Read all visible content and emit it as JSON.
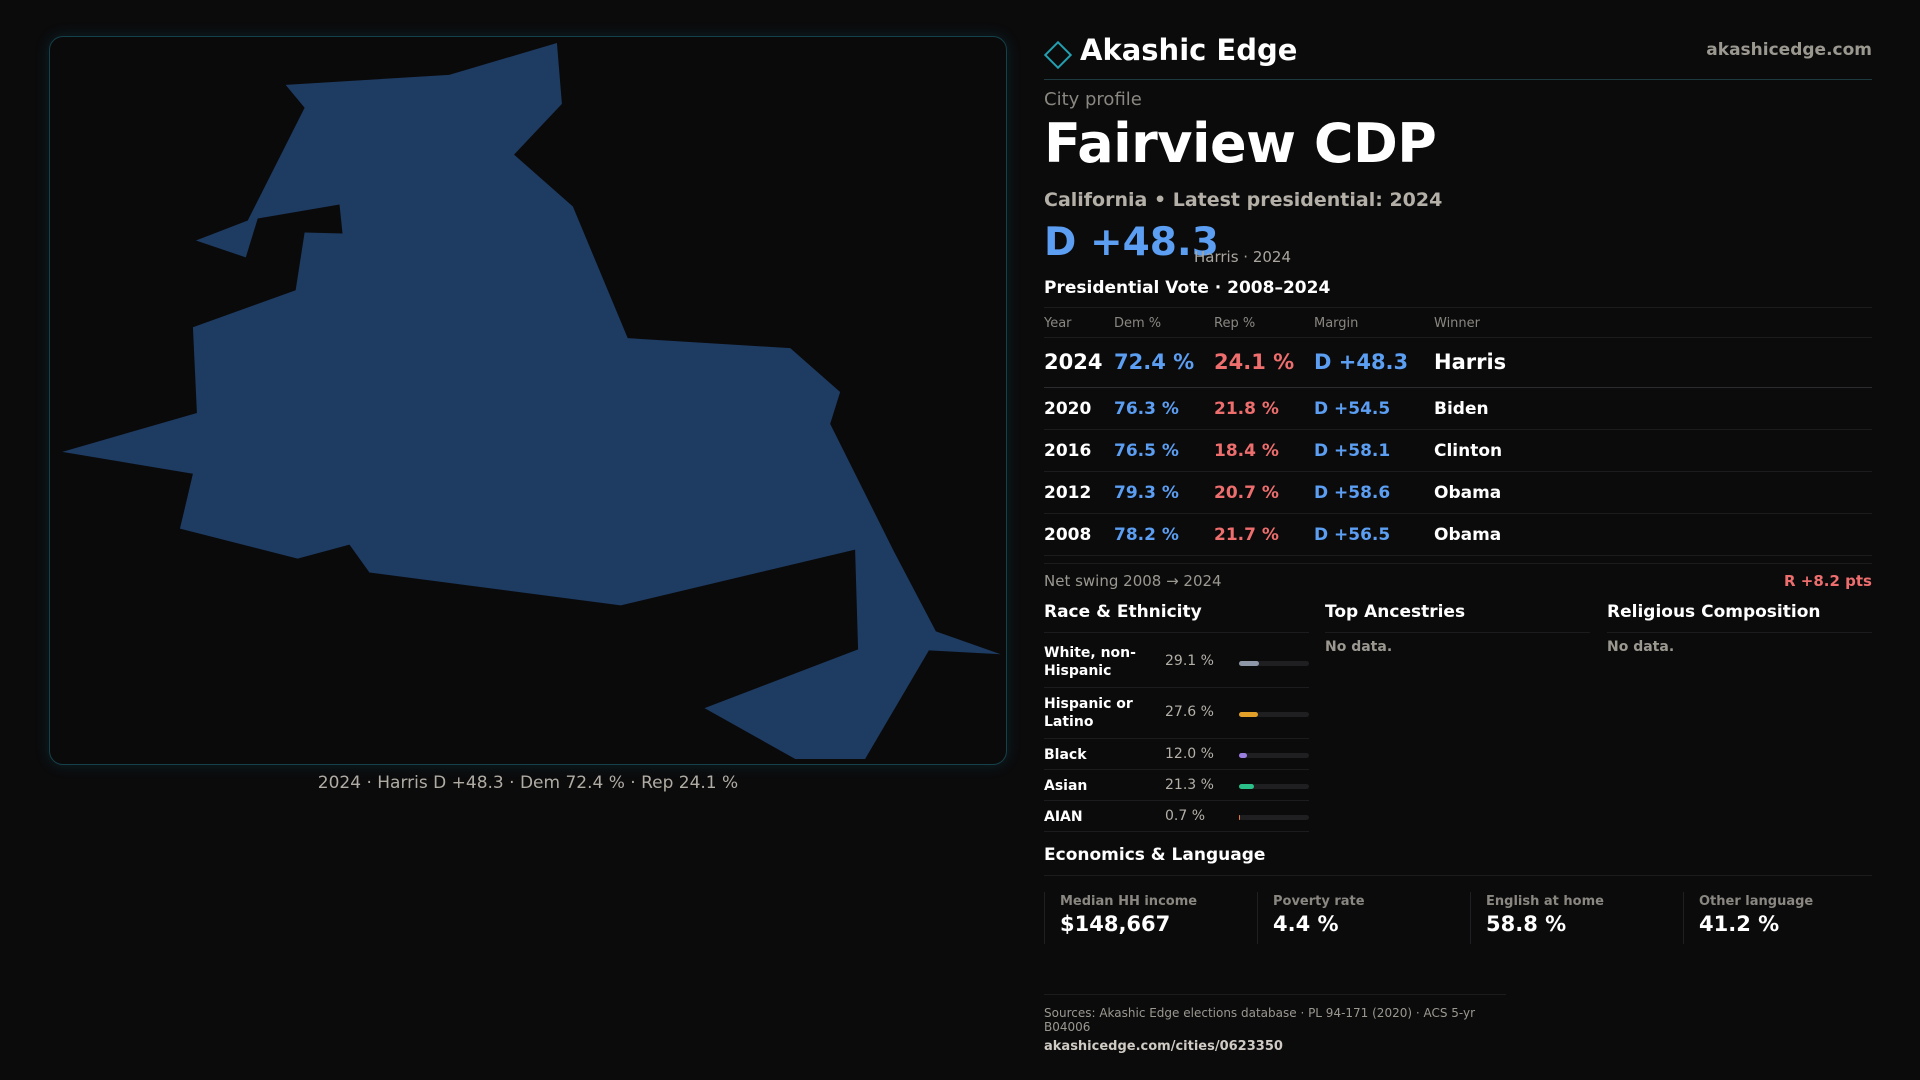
{
  "brand": {
    "name": "Akashic Edge",
    "url": "akashicedge.com"
  },
  "profile": {
    "kicker": "City profile",
    "city_name": "Fairview CDP",
    "subline": "California • Latest presidential: 2024",
    "headline_margin": "D +48.3",
    "headline_note": "Harris · 2024"
  },
  "map": {
    "fill_color": "#1e3b62",
    "caption": "2024 · Harris D +48.3 · Dem 72.4 % · Rep 24.1 %"
  },
  "vote_history": {
    "title": "Presidential Vote · 2008–2024",
    "headers": [
      "Year",
      "Dem %",
      "Rep %",
      "Margin",
      "Winner"
    ],
    "rows": [
      {
        "year": "2024",
        "dem": "72.4 %",
        "rep": "24.1 %",
        "margin": "D +48.3",
        "winner": "Harris"
      },
      {
        "year": "2020",
        "dem": "76.3 %",
        "rep": "21.8 %",
        "margin": "D +54.5",
        "winner": "Biden"
      },
      {
        "year": "2016",
        "dem": "76.5 %",
        "rep": "18.4 %",
        "margin": "D +58.1",
        "winner": "Clinton"
      },
      {
        "year": "2012",
        "dem": "79.3 %",
        "rep": "20.7 %",
        "margin": "D +58.6",
        "winner": "Obama"
      },
      {
        "year": "2008",
        "dem": "78.2 %",
        "rep": "21.7 %",
        "margin": "D +56.5",
        "winner": "Obama"
      }
    ],
    "swing_label": "Net swing 2008 → 2024",
    "swing_value": "R +8.2 pts"
  },
  "race": {
    "title": "Race & Ethnicity",
    "rows": [
      {
        "name": "White, non-Hispanic",
        "pct": "29.1 %",
        "value": 29.1,
        "color": "#8e97a8"
      },
      {
        "name": "Hispanic or Latino",
        "pct": "27.6 %",
        "value": 27.6,
        "color": "#e3a028"
      },
      {
        "name": "Black",
        "pct": "12.0 %",
        "value": 12.0,
        "color": "#9b7fe0"
      },
      {
        "name": "Asian",
        "pct": "21.3 %",
        "value": 21.3,
        "color": "#2bbf8a"
      },
      {
        "name": "AIAN",
        "pct": "0.7 %",
        "value": 0.7,
        "color": "#e07a3c"
      }
    ]
  },
  "ancestries": {
    "title": "Top Ancestries",
    "empty_text": "No data."
  },
  "religion": {
    "title": "Religious Composition",
    "empty_text": "No data."
  },
  "economics": {
    "title": "Economics & Language",
    "stats": [
      {
        "label": "Median HH income",
        "value": "$148,667"
      },
      {
        "label": "Poverty rate",
        "value": "4.4 %"
      },
      {
        "label": "English at home",
        "value": "58.8 %"
      },
      {
        "label": "Other language",
        "value": "41.2 %"
      }
    ]
  },
  "footer": {
    "sources": "Sources: Akashic Edge elections database · PL 94-171 (2020) · ACS 5-yr B04006",
    "url": "akashicedge.com/cities/0623350"
  }
}
